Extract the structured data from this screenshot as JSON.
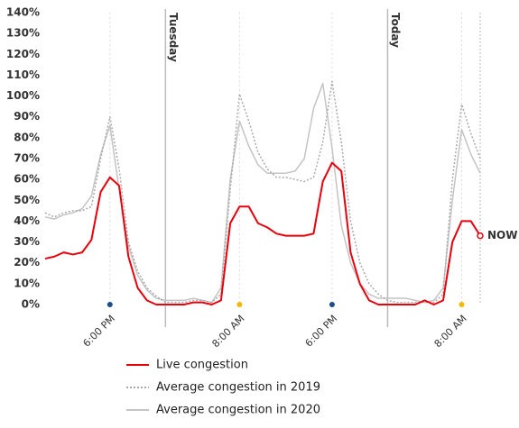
{
  "chart_data": {
    "type": "line",
    "categories": [
      null,
      null,
      null,
      null,
      null,
      null,
      null,
      "6:00 PM",
      null,
      null,
      null,
      null,
      null,
      null,
      null,
      null,
      null,
      null,
      null,
      null,
      null,
      "8:00 AM",
      null,
      null,
      null,
      null,
      null,
      null,
      null,
      null,
      null,
      "6:00 PM",
      null,
      null,
      null,
      null,
      null,
      null,
      null,
      null,
      null,
      null,
      null,
      null,
      null,
      "8:00 AM",
      null,
      null
    ],
    "series": [
      {
        "name": "Live congestion",
        "color": "#e8000b",
        "style": "solid",
        "values": [
          22,
          23,
          25,
          24,
          25,
          31,
          54,
          61,
          57,
          23,
          8,
          2,
          0,
          0,
          0,
          0,
          1,
          1,
          0,
          2,
          39,
          47,
          47,
          39,
          37,
          34,
          33,
          33,
          33,
          34,
          59,
          68,
          64,
          25,
          10,
          2,
          0,
          0,
          0,
          0,
          0,
          2,
          0,
          2,
          30,
          40,
          40,
          33
        ]
      },
      {
        "name": "Average congestion in 2019",
        "color": "#aaaaaa",
        "style": "dotted",
        "values": [
          44,
          42,
          44,
          45,
          45,
          47,
          70,
          90,
          65,
          30,
          16,
          8,
          4,
          1,
          1,
          1,
          2,
          2,
          1,
          5,
          55,
          101,
          88,
          73,
          65,
          61,
          61,
          60,
          59,
          61,
          78,
          107,
          78,
          40,
          20,
          10,
          5,
          2,
          1,
          1,
          1,
          1,
          1,
          5,
          60,
          96,
          82,
          70
        ]
      },
      {
        "name": "Average congestion in 2020",
        "color": "#c4c4c4",
        "style": "solid",
        "values": [
          42,
          41,
          43,
          44,
          46,
          52,
          72,
          86,
          55,
          28,
          14,
          7,
          3,
          2,
          2,
          2,
          3,
          2,
          1,
          8,
          60,
          88,
          76,
          67,
          63,
          63,
          63,
          64,
          70,
          94,
          106,
          75,
          38,
          20,
          10,
          5,
          3,
          3,
          3,
          3,
          2,
          1,
          2,
          8,
          50,
          84,
          72,
          63
        ]
      }
    ],
    "ylim": [
      0,
      140
    ],
    "yticks": [
      {
        "value": 0,
        "label": "0%"
      },
      {
        "value": 10,
        "label": "10%"
      },
      {
        "value": 20,
        "label": "20%"
      },
      {
        "value": 30,
        "label": "30%"
      },
      {
        "value": 40,
        "label": "40%"
      },
      {
        "value": 50,
        "label": "50%"
      },
      {
        "value": 60,
        "label": "60%"
      },
      {
        "value": 70,
        "label": "70%"
      },
      {
        "value": 80,
        "label": "80%"
      },
      {
        "value": 90,
        "label": "90%"
      },
      {
        "value": 100,
        "label": "100%"
      },
      {
        "value": 110,
        "label": "110%"
      },
      {
        "value": 120,
        "label": "120%"
      },
      {
        "value": 130,
        "label": "130%"
      },
      {
        "value": 140,
        "label": "140%"
      }
    ],
    "day_markers": [
      {
        "at": 13,
        "label": "Tuesday"
      },
      {
        "at": 37,
        "label": "Today"
      }
    ],
    "now_label": "NOW",
    "legend": "bottom"
  }
}
